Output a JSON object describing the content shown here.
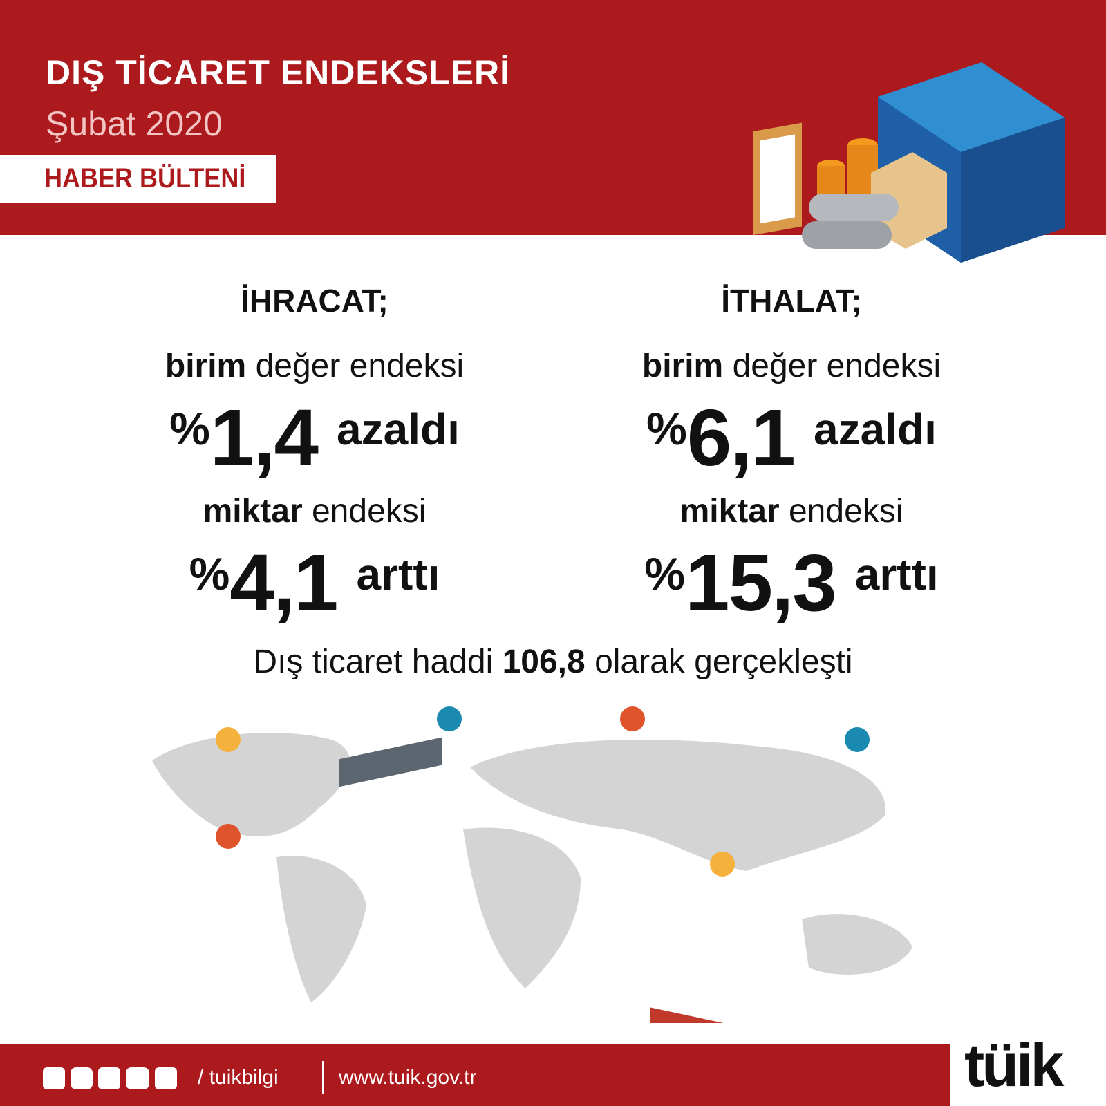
{
  "header": {
    "title": "DIŞ TİCARET ENDEKSLERİ",
    "subtitle": "Şubat 2020",
    "badge": "HABER BÜLTENİ"
  },
  "columns": [
    {
      "heading": "İHRACAT;",
      "stats": [
        {
          "bold": "birim",
          "label": "değer endeksi",
          "percent": "%",
          "value": "1,4",
          "change": "azaldı"
        },
        {
          "bold": "miktar",
          "label": "endeksi",
          "percent": "%",
          "value": "4,1",
          "change": "arttı"
        }
      ]
    },
    {
      "heading": "İTHALAT;",
      "stats": [
        {
          "bold": "birim",
          "label": "değer endeksi",
          "percent": "%",
          "value": "6,1",
          "change": "azaldı"
        },
        {
          "bold": "miktar",
          "label": "endeksi",
          "percent": "%",
          "value": "15,3",
          "change": "arttı"
        }
      ]
    }
  ],
  "summary": {
    "before": "Dış ticaret haddi",
    "value": "106,8",
    "after": "olarak gerçekleşti"
  },
  "footer": {
    "handle": "/ tuikbilgi",
    "url": "www.tuik.gov.tr",
    "logo": "tüik"
  }
}
